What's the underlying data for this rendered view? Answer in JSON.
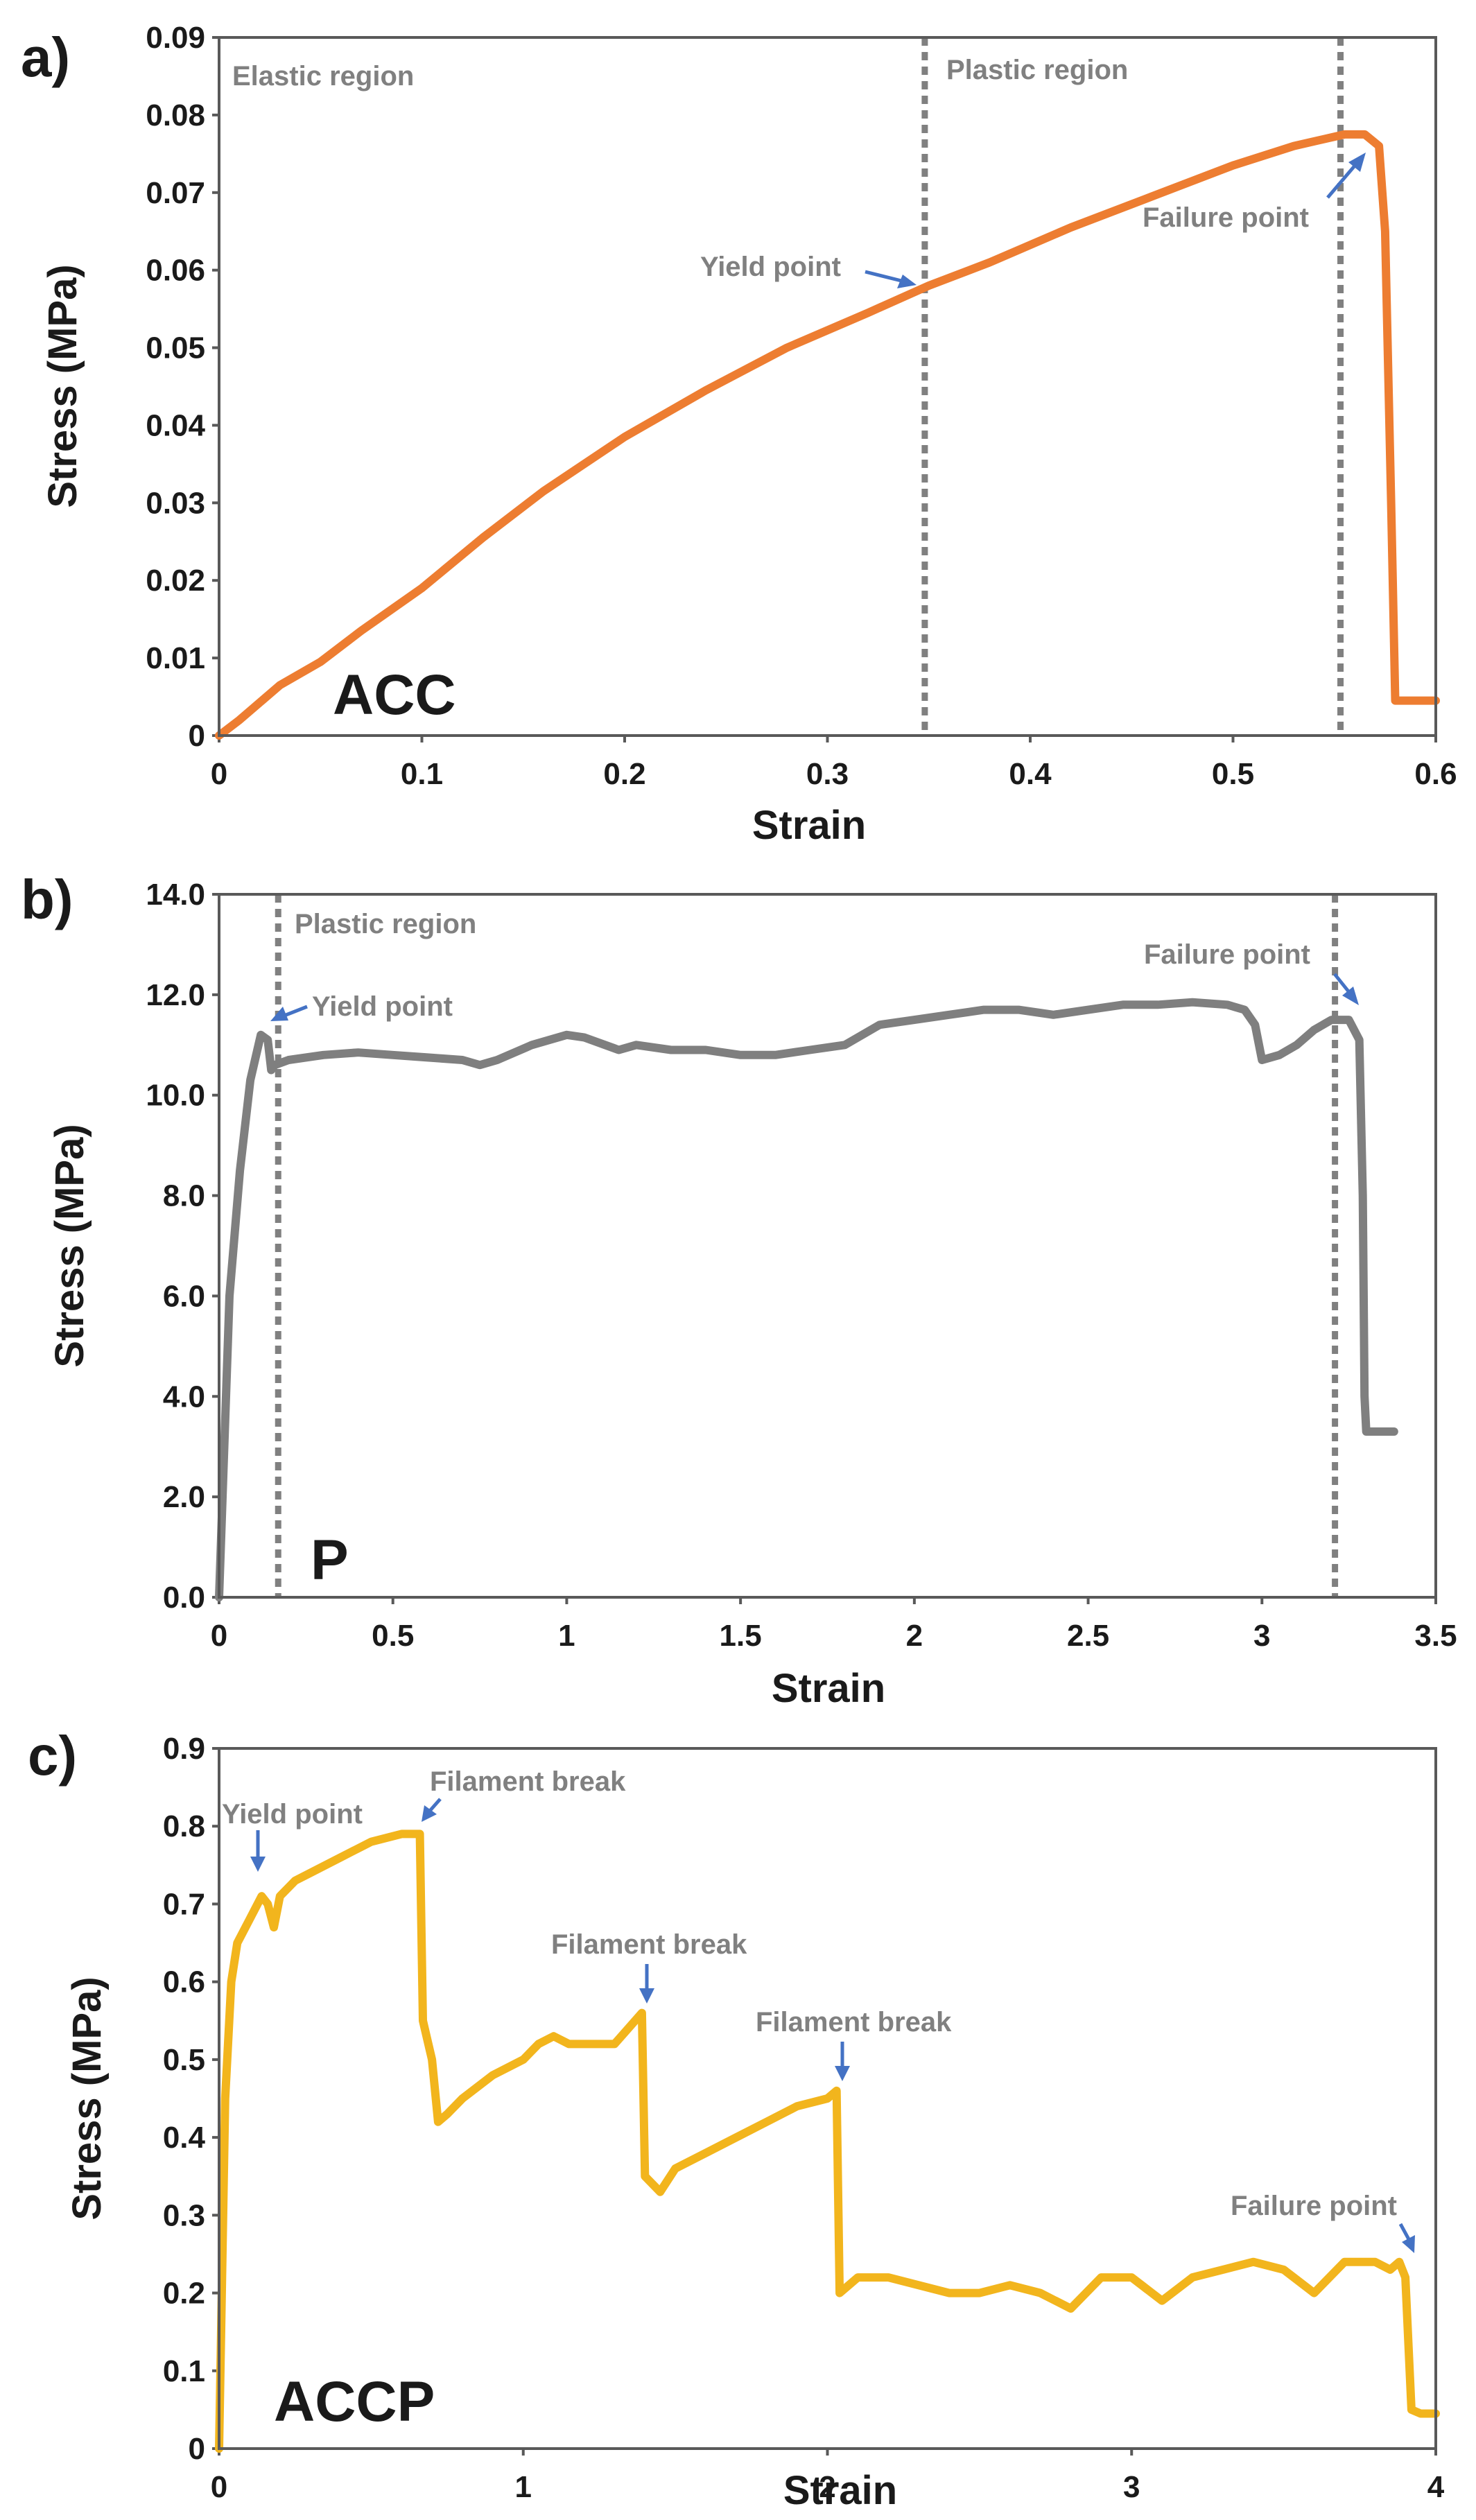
{
  "colors": {
    "acc": "#ed7d31",
    "p": "#7f7f7f",
    "accp": "#f2b51d",
    "guide": "#808080",
    "arrow": "#4472c4"
  },
  "chart_data": [
    {
      "panel": "a)",
      "sample": "ACC",
      "type": "line",
      "xlabel": "Strain",
      "ylabel": "Stress (MPa)",
      "xlim": [
        0,
        0.6
      ],
      "ylim": [
        0,
        0.09
      ],
      "xticks": [
        0,
        0.1,
        0.2,
        0.3,
        0.4,
        0.5,
        0.6
      ],
      "yticks": [
        0,
        0.01,
        0.02,
        0.03,
        0.04,
        0.05,
        0.06,
        0.07,
        0.08,
        0.09
      ],
      "xtick_labels": [
        "0",
        "0.1",
        "0.2",
        "0.3",
        "0.4",
        "0.5",
        "0.6"
      ],
      "ytick_labels": [
        "0",
        "0.01",
        "0.02",
        "0.03",
        "0.04",
        "0.05",
        "0.06",
        "0.07",
        "0.08",
        "0.09"
      ],
      "series": [
        {
          "name": "ACC",
          "color": "#ed7d31",
          "x": [
            0,
            0.01,
            0.03,
            0.05,
            0.07,
            0.1,
            0.13,
            0.16,
            0.2,
            0.24,
            0.28,
            0.32,
            0.35,
            0.38,
            0.42,
            0.46,
            0.5,
            0.53,
            0.555,
            0.565,
            0.572,
            0.575,
            0.578,
            0.58,
            0.6
          ],
          "y": [
            0,
            0.002,
            0.0065,
            0.0095,
            0.0135,
            0.019,
            0.0255,
            0.0315,
            0.0385,
            0.0445,
            0.05,
            0.0545,
            0.058,
            0.061,
            0.0655,
            0.0695,
            0.0735,
            0.076,
            0.0775,
            0.0775,
            0.076,
            0.065,
            0.03,
            0.0045,
            0.0045
          ]
        }
      ],
      "vlines": [
        0.348,
        0.553
      ],
      "annotations": [
        {
          "text": "Elastic region"
        },
        {
          "text": "Plastic region"
        },
        {
          "text": "Yield point"
        },
        {
          "text": "Failure point"
        }
      ]
    },
    {
      "panel": "b)",
      "sample": "P",
      "type": "line",
      "xlabel": "Strain",
      "ylabel": "Stress (MPa)",
      "xlim": [
        0,
        3.5
      ],
      "ylim": [
        0,
        14
      ],
      "xticks": [
        0,
        0.5,
        1,
        1.5,
        2,
        2.5,
        3,
        3.5
      ],
      "yticks": [
        0,
        2,
        4,
        6,
        8,
        10,
        12,
        14
      ],
      "xtick_labels": [
        "0",
        "0.5",
        "1",
        "1.5",
        "2",
        "2.5",
        "3",
        "3.5"
      ],
      "ytick_labels": [
        "0.0",
        "2.0",
        "4.0",
        "6.0",
        "8.0",
        "10.0",
        "12.0",
        "14.0"
      ],
      "series": [
        {
          "name": "P",
          "color": "#7f7f7f",
          "x": [
            0,
            0.03,
            0.06,
            0.09,
            0.12,
            0.14,
            0.15,
            0.16,
            0.2,
            0.3,
            0.4,
            0.5,
            0.6,
            0.7,
            0.75,
            0.8,
            0.9,
            1.0,
            1.05,
            1.15,
            1.2,
            1.3,
            1.4,
            1.5,
            1.6,
            1.7,
            1.8,
            1.9,
            2.0,
            2.1,
            2.2,
            2.3,
            2.4,
            2.5,
            2.6,
            2.7,
            2.8,
            2.9,
            2.95,
            2.98,
            3.0,
            3.05,
            3.1,
            3.15,
            3.2,
            3.25,
            3.28,
            3.29,
            3.295,
            3.3,
            3.38
          ],
          "y": [
            0,
            6.0,
            8.5,
            10.3,
            11.2,
            11.1,
            10.5,
            10.6,
            10.7,
            10.8,
            10.85,
            10.8,
            10.75,
            10.7,
            10.6,
            10.7,
            11.0,
            11.2,
            11.15,
            10.9,
            11.0,
            10.9,
            10.9,
            10.8,
            10.8,
            10.9,
            11.0,
            11.4,
            11.5,
            11.6,
            11.7,
            11.7,
            11.6,
            11.7,
            11.8,
            11.8,
            11.85,
            11.8,
            11.7,
            11.4,
            10.7,
            10.8,
            11.0,
            11.3,
            11.5,
            11.5,
            11.1,
            8.0,
            4.0,
            3.3,
            3.3
          ]
        }
      ],
      "vlines": [
        0.17,
        3.21
      ],
      "annotations": [
        {
          "text": "Plastic region"
        },
        {
          "text": "Yield point"
        },
        {
          "text": "Failure point"
        }
      ]
    },
    {
      "panel": "c)",
      "sample": "ACCP",
      "type": "line",
      "xlabel": "Strain",
      "ylabel": "Stress (MPa)",
      "xlim": [
        0,
        4
      ],
      "ylim": [
        0,
        0.9
      ],
      "xticks": [
        0,
        1,
        2,
        3,
        4
      ],
      "yticks": [
        0,
        0.1,
        0.2,
        0.3,
        0.4,
        0.5,
        0.6,
        0.7,
        0.8,
        0.9
      ],
      "xtick_labels": [
        "0",
        "1",
        "2",
        "3",
        "4"
      ],
      "ytick_labels": [
        "0",
        "0.1",
        "0.2",
        "0.3",
        "0.4",
        "0.5",
        "0.6",
        "0.7",
        "0.8",
        "0.9"
      ],
      "series": [
        {
          "name": "ACCP",
          "color": "#f2b51d",
          "x": [
            0,
            0.02,
            0.04,
            0.06,
            0.1,
            0.14,
            0.16,
            0.18,
            0.2,
            0.25,
            0.3,
            0.4,
            0.5,
            0.6,
            0.66,
            0.67,
            0.7,
            0.72,
            0.75,
            0.8,
            0.9,
            1.0,
            1.05,
            1.1,
            1.15,
            1.2,
            1.3,
            1.39,
            1.4,
            1.45,
            1.5,
            1.6,
            1.7,
            1.8,
            1.9,
            2.0,
            2.03,
            2.04,
            2.1,
            2.2,
            2.3,
            2.4,
            2.5,
            2.6,
            2.7,
            2.8,
            2.9,
            3.0,
            3.1,
            3.2,
            3.3,
            3.4,
            3.5,
            3.6,
            3.7,
            3.8,
            3.85,
            3.88,
            3.9,
            3.92,
            3.95,
            4.0
          ],
          "y": [
            0,
            0.45,
            0.6,
            0.65,
            0.68,
            0.71,
            0.7,
            0.67,
            0.71,
            0.73,
            0.74,
            0.76,
            0.78,
            0.79,
            0.79,
            0.55,
            0.5,
            0.42,
            0.43,
            0.45,
            0.48,
            0.5,
            0.52,
            0.53,
            0.52,
            0.52,
            0.52,
            0.56,
            0.35,
            0.33,
            0.36,
            0.38,
            0.4,
            0.42,
            0.44,
            0.45,
            0.46,
            0.2,
            0.22,
            0.22,
            0.21,
            0.2,
            0.2,
            0.21,
            0.2,
            0.18,
            0.22,
            0.22,
            0.19,
            0.22,
            0.23,
            0.24,
            0.23,
            0.2,
            0.24,
            0.24,
            0.23,
            0.24,
            0.22,
            0.05,
            0.045,
            0.045
          ]
        }
      ],
      "vlines": [],
      "annotations": [
        {
          "text": "Yield point"
        },
        {
          "text": "Filament break"
        },
        {
          "text": "Filament break"
        },
        {
          "text": "Filament break"
        },
        {
          "text": "Failure point"
        }
      ]
    }
  ]
}
